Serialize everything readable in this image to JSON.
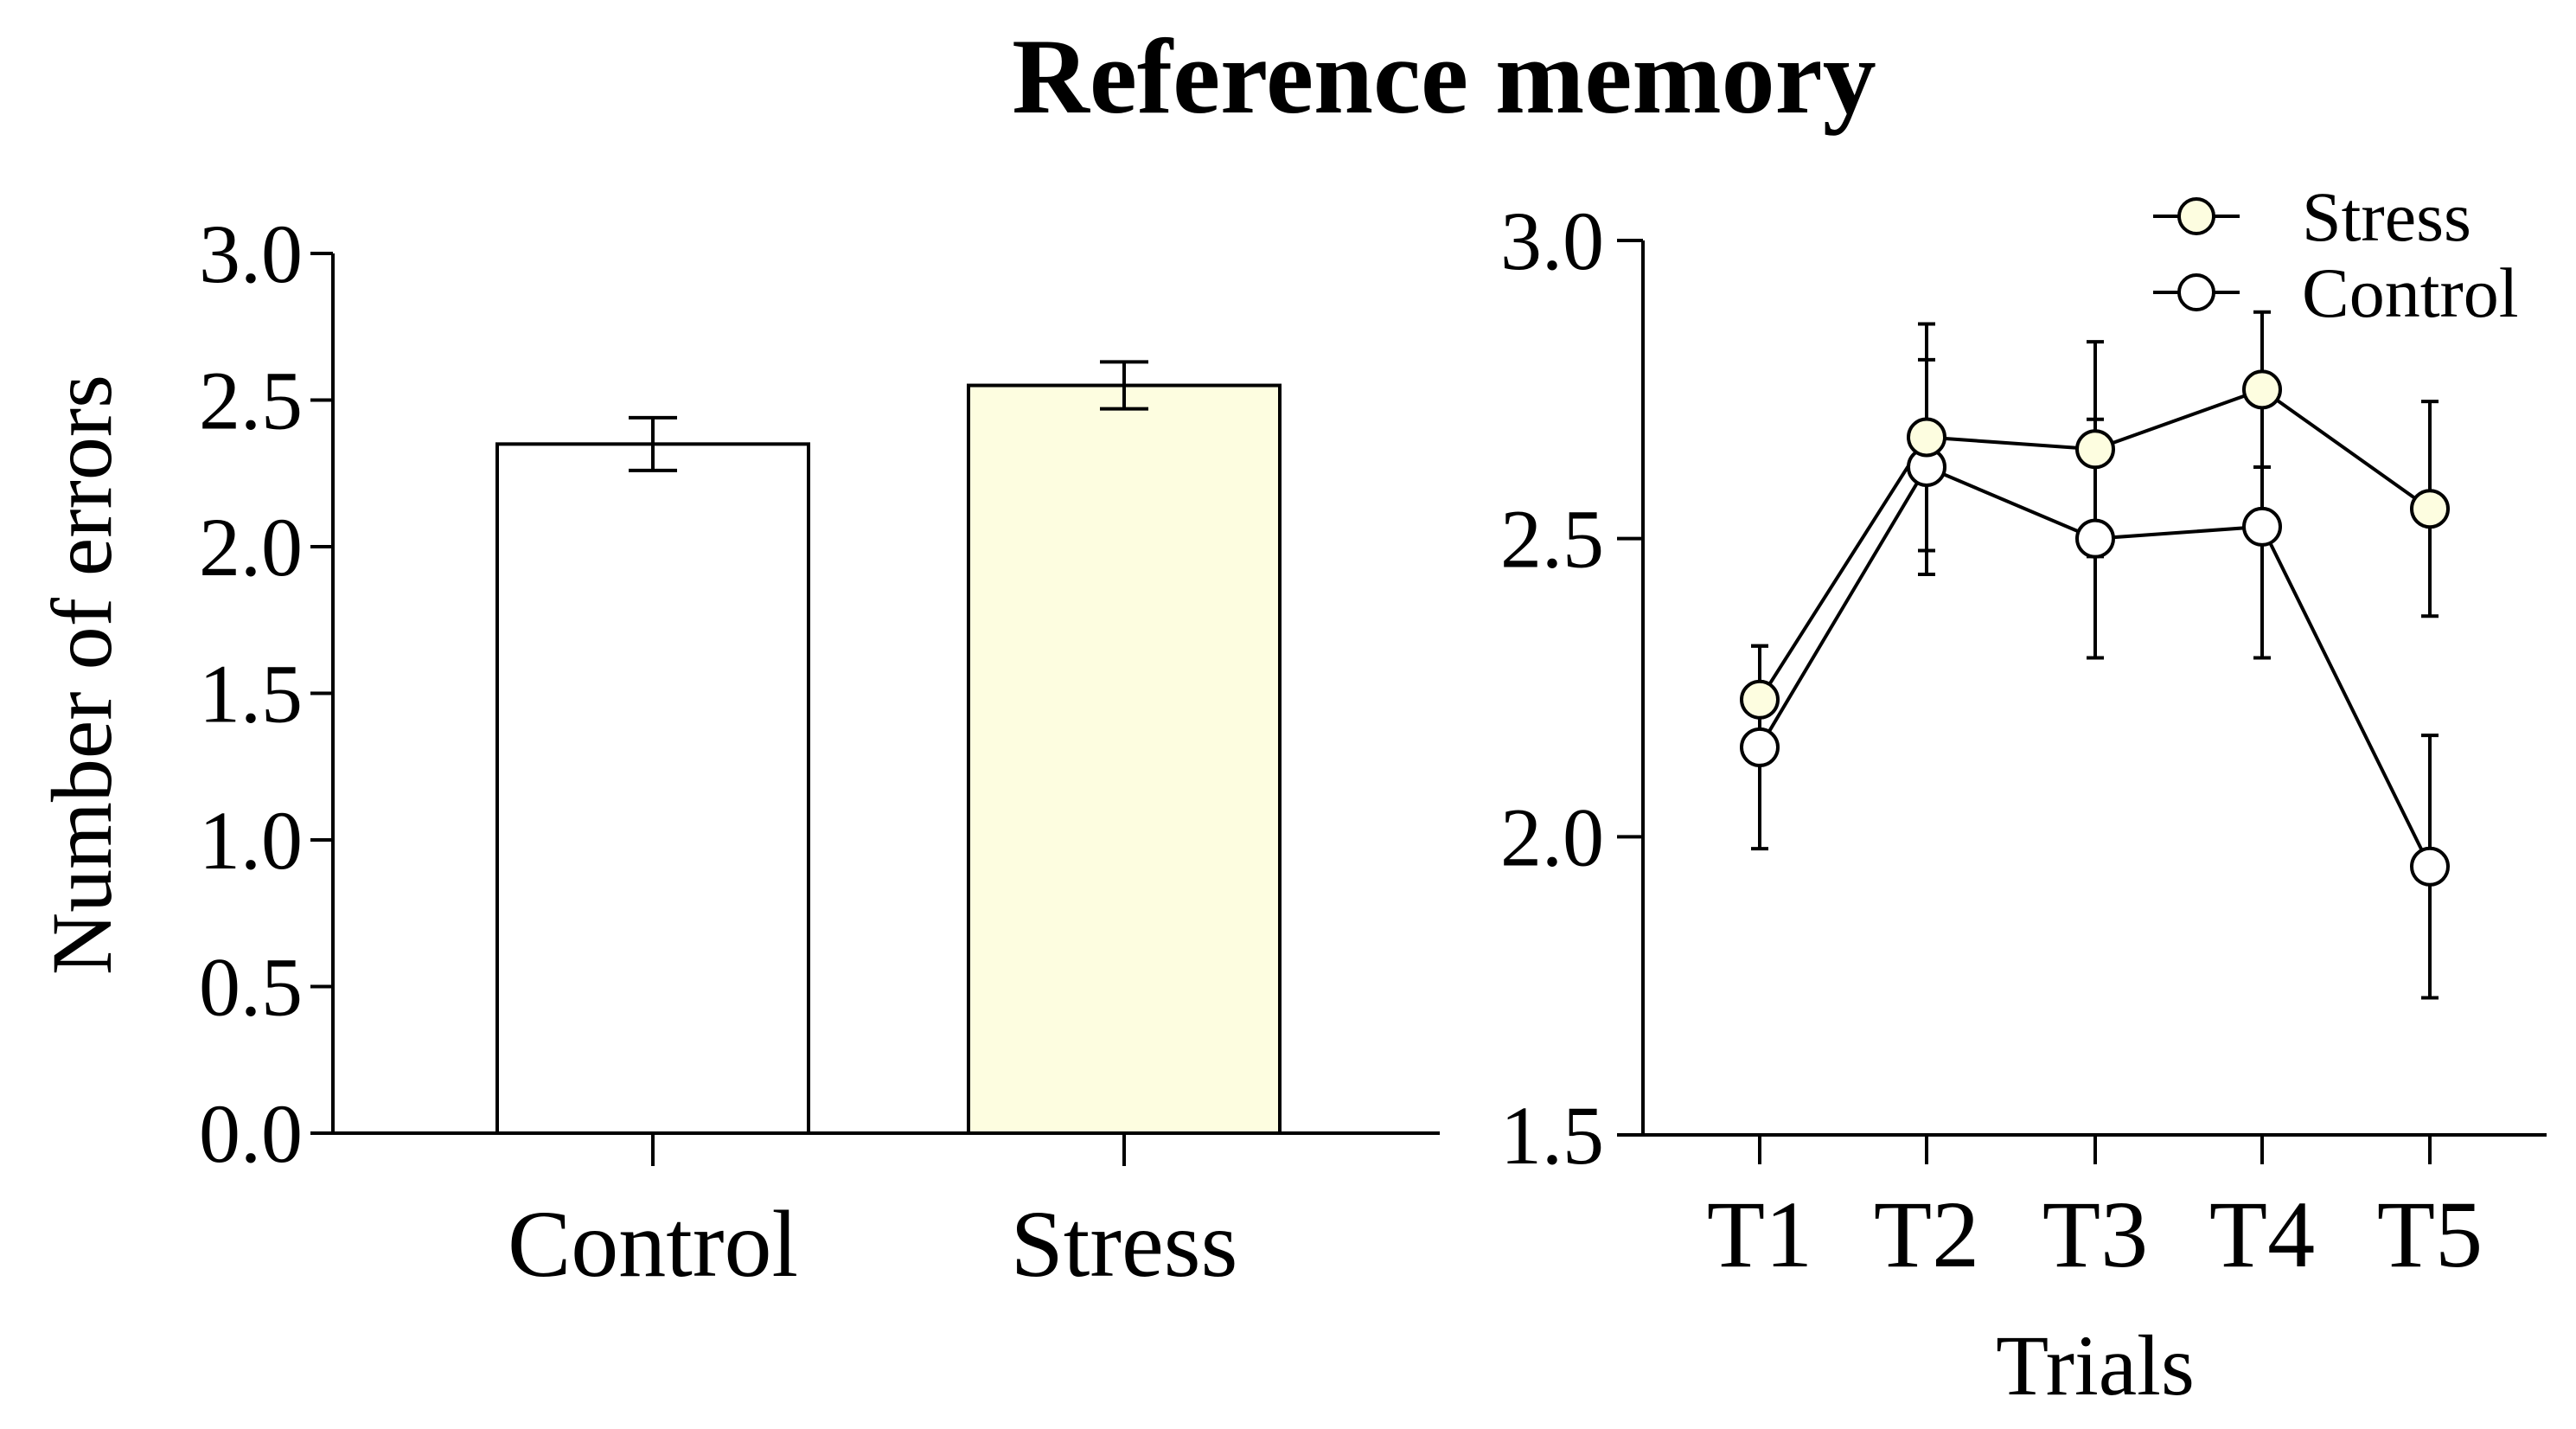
{
  "title": "Reference memory",
  "chart_data": [
    {
      "type": "bar",
      "ylabel": "Number of errors",
      "xlabel": "",
      "ylim": [
        0,
        3.0
      ],
      "yticks": [
        "0.0",
        "0.5",
        "1.0",
        "1.5",
        "2.0",
        "2.5",
        "3.0"
      ],
      "categories": [
        "Control",
        "Stress"
      ],
      "values": [
        2.35,
        2.55
      ],
      "errors": [
        0.09,
        0.08
      ],
      "colors": [
        "#ffffff",
        "#fdfde0"
      ]
    },
    {
      "type": "line",
      "xlabel": "Trials",
      "ylabel": "",
      "ylim": [
        1.5,
        3.0
      ],
      "yticks": [
        "1.5",
        "2.0",
        "2.5",
        "3.0"
      ],
      "x": [
        "T1",
        "T2",
        "T3",
        "T4",
        "T5"
      ],
      "legend_position": "top-right",
      "series": [
        {
          "name": "Stress",
          "values": [
            2.23,
            2.67,
            2.65,
            2.75,
            2.55
          ],
          "errors": [
            0.09,
            0.19,
            0.18,
            0.13,
            0.18
          ],
          "color": "#fdfde0"
        },
        {
          "name": "Control",
          "values": [
            2.15,
            2.62,
            2.5,
            2.52,
            1.95
          ],
          "errors": [
            0.17,
            0.18,
            0.2,
            0.22,
            0.22
          ],
          "color": "#ffffff"
        }
      ]
    }
  ]
}
